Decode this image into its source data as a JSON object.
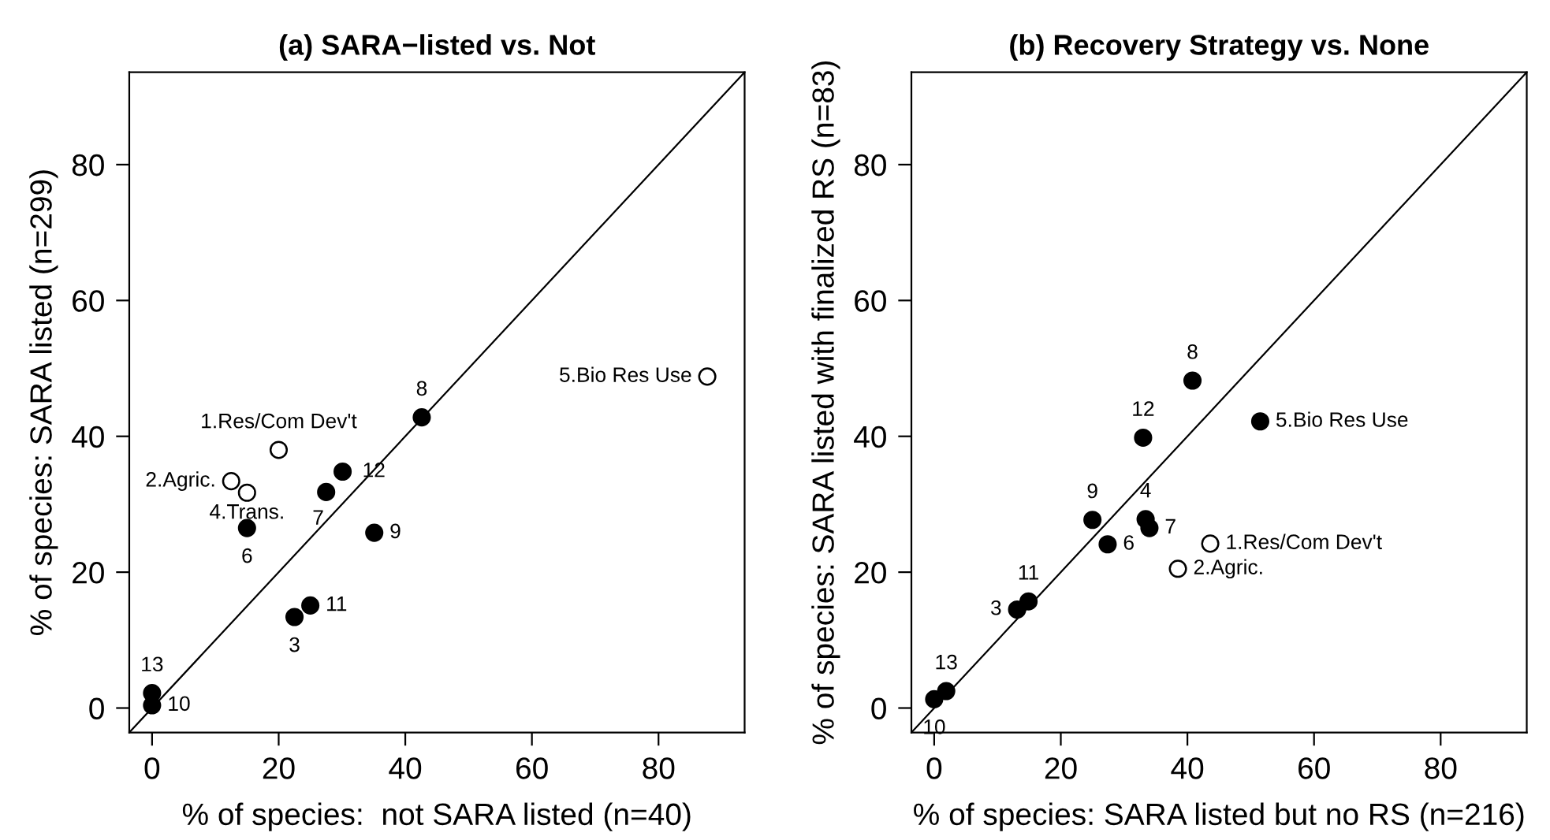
{
  "chart_data": [
    {
      "type": "scatter",
      "title": "(a) SARA−listed vs. Not",
      "xlabel": "% of species:  not SARA listed (n=40)",
      "ylabel": "% of species: SARA listed (n=299)",
      "xlim": [
        -3.6,
        93.6
      ],
      "ylim": [
        -3.6,
        93.6
      ],
      "xticks": [
        0,
        20,
        40,
        60,
        80
      ],
      "yticks": [
        0,
        20,
        40,
        60,
        80
      ],
      "grid": false,
      "legend": false,
      "marker": "circle",
      "series": [
        {
          "color": "#000000",
          "x": [
            15,
            27.5,
            30.1,
            42.6,
            35.1,
            25,
            22.5,
            0,
            0
          ],
          "values": [
            26.5,
            31.8,
            34.8,
            42.8,
            25.8,
            15.1,
            13.4,
            2.2,
            0.4
          ]
        },
        {
          "color": "#ffffff",
          "x": [
            20,
            12.5,
            15,
            87.7
          ],
          "values": [
            38.0,
            33.4,
            31.7,
            48.8
          ]
        },
        {
          "type": "line",
          "color": "#000000",
          "line_style": "solid",
          "marker": "none",
          "x": [
            -3.6,
            93.6
          ],
          "values": [
            -3.6,
            93.6
          ]
        }
      ],
      "annotations": [
        {
          "text": "1.Res/Com Dev't",
          "x": 20,
          "y": 38.0
        },
        {
          "text": "2.Agric.",
          "x": 12.5,
          "y": 33.4
        },
        {
          "text": "4.Trans.",
          "x": 15,
          "y": 31.7
        },
        {
          "text": "5.Bio Res Use",
          "x": 87.7,
          "y": 48.8
        },
        {
          "text": "6",
          "x": 15,
          "y": 26.5
        },
        {
          "text": "7",
          "x": 27.5,
          "y": 31.8
        },
        {
          "text": "12",
          "x": 30.1,
          "y": 34.8
        },
        {
          "text": "8",
          "x": 42.6,
          "y": 42.8
        },
        {
          "text": "9",
          "x": 35.1,
          "y": 25.8
        },
        {
          "text": "11",
          "x": 25,
          "y": 15.1
        },
        {
          "text": "3",
          "x": 22.5,
          "y": 13.4
        },
        {
          "text": "13",
          "x": 0,
          "y": 2.2
        },
        {
          "text": "10",
          "x": 0,
          "y": 0.4
        }
      ]
    },
    {
      "type": "scatter",
      "title": "(b) Recovery Strategy vs. None",
      "xlabel": "% of species: SARA listed but no RS (n=216)",
      "ylabel": "% of species: SARA listed with finalized RS (n=83)",
      "xlim": [
        -3.6,
        93.6
      ],
      "ylim": [
        -3.6,
        93.6
      ],
      "xticks": [
        0,
        20,
        40,
        60,
        80
      ],
      "yticks": [
        0,
        20,
        40,
        60,
        80
      ],
      "grid": false,
      "legend": false,
      "marker": "circle",
      "series": [
        {
          "color": "#000000",
          "x": [
            40.8,
            33.0,
            51.5,
            25.0,
            33.4,
            34.0,
            27.4,
            14.9,
            13.1,
            1.9,
            0
          ],
          "values": [
            48.2,
            39.8,
            42.2,
            27.7,
            27.8,
            26.5,
            24.1,
            15.7,
            14.5,
            2.5,
            1.3
          ]
        },
        {
          "color": "#ffffff",
          "x": [
            43.6,
            38.5
          ],
          "values": [
            24.2,
            20.5
          ]
        },
        {
          "type": "line",
          "color": "#000000",
          "line_style": "solid",
          "marker": "none",
          "x": [
            -3.6,
            93.6
          ],
          "values": [
            -3.6,
            93.6
          ]
        }
      ],
      "annotations": [
        {
          "text": "8",
          "x": 40.8,
          "y": 48.2
        },
        {
          "text": "12",
          "x": 33.0,
          "y": 39.8
        },
        {
          "text": "5.Bio Res Use",
          "x": 51.5,
          "y": 42.2
        },
        {
          "text": "9",
          "x": 25.0,
          "y": 27.7
        },
        {
          "text": "4",
          "x": 33.4,
          "y": 27.8
        },
        {
          "text": "7",
          "x": 34.0,
          "y": 26.5
        },
        {
          "text": "6",
          "x": 27.4,
          "y": 24.1
        },
        {
          "text": "1.Res/Com Dev't",
          "x": 43.6,
          "y": 24.2
        },
        {
          "text": "2.Agric.",
          "x": 38.5,
          "y": 20.5
        },
        {
          "text": "11",
          "x": 14.9,
          "y": 15.7
        },
        {
          "text": "3",
          "x": 13.1,
          "y": 14.5
        },
        {
          "text": "13",
          "x": 1.9,
          "y": 2.5
        },
        {
          "text": "10",
          "x": 0,
          "y": 1.3
        }
      ]
    }
  ]
}
